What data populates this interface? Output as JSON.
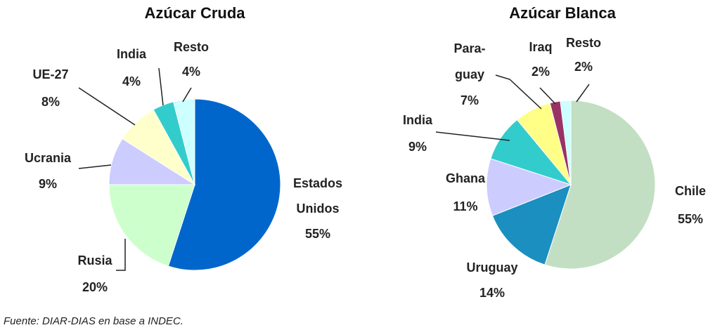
{
  "chart_data": [
    {
      "type": "pie",
      "title": "Azúcar Cruda",
      "categories": [
        "Estados Unidos",
        "Rusia",
        "Ucrania",
        "UE-27",
        "India",
        "Resto"
      ],
      "values": [
        55,
        20,
        9,
        8,
        4,
        4
      ],
      "value_labels": [
        "55%",
        "20%",
        "9%",
        "8%",
        "4%",
        "4%"
      ],
      "colors": [
        "#0066cc",
        "#ccffcc",
        "#ccccff",
        "#ffffcc",
        "#33cccc",
        "#ccffff"
      ]
    },
    {
      "type": "pie",
      "title": "Azúcar Blanca",
      "categories": [
        "Chile",
        "Uruguay",
        "Ghana",
        "India",
        "Para-guay",
        "Iraq",
        "Resto"
      ],
      "values": [
        55,
        14,
        11,
        9,
        7,
        2,
        2
      ],
      "value_labels": [
        "55%",
        "14%",
        "11%",
        "9%",
        "7%",
        "2%",
        "2%"
      ],
      "colors": [
        "#c3dfc3",
        "#1a8fc0",
        "#ccccff",
        "#33cccc",
        "#ffff88",
        "#993366",
        "#ccffff"
      ]
    }
  ],
  "source": "Fuente: DIAR-DIAS en base a INDEC."
}
